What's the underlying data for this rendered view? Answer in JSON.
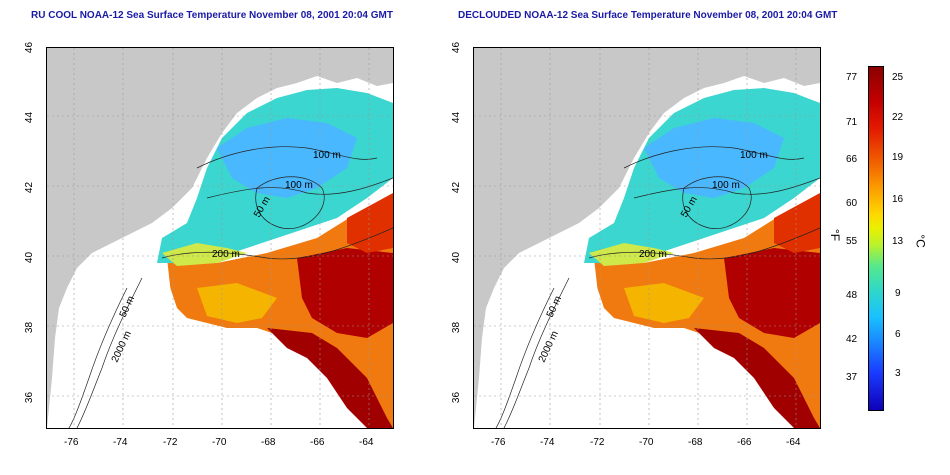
{
  "maps": [
    {
      "title": "RU COOL NOAA-12 Sea Surface Temperature November 08, 2001 20:04 GMT",
      "contour_labels": [
        "100 m",
        "100 m",
        "50 m",
        "200 m",
        "50 m",
        "2000 m"
      ]
    },
    {
      "title": "DECLOUDED NOAA-12 Sea Surface Temperature November 08, 2001 20:04 GMT",
      "contour_labels": [
        "100 m",
        "100 m",
        "50 m",
        "200 m",
        "50 m",
        "2000 m"
      ]
    }
  ],
  "axes": {
    "x_ticks": [
      "-76",
      "-74",
      "-72",
      "-70",
      "-68",
      "-66",
      "-64"
    ],
    "y_ticks": [
      "46",
      "44",
      "42",
      "40",
      "38",
      "36"
    ]
  },
  "colorbar": {
    "fahrenheit_ticks": [
      "77",
      "71",
      "66",
      "60",
      "55",
      "48",
      "42",
      "37"
    ],
    "celsius_ticks": [
      "25",
      "22",
      "19",
      "16",
      "13",
      "9",
      "6",
      "3"
    ],
    "fahrenheit_unit": "°F",
    "celsius_unit": "°C"
  },
  "colors": {
    "land": "#c8c8c8",
    "title": "#1a1aa6",
    "warm": "#c40000",
    "cool": "#3ad6cf"
  }
}
